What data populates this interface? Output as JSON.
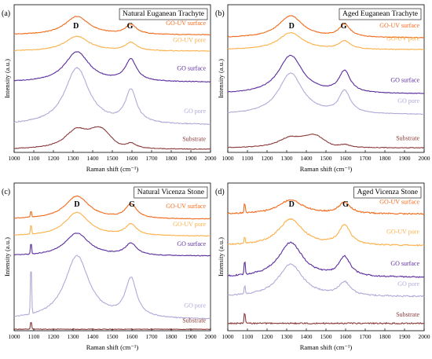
{
  "chart_data": [
    {
      "panel_label": "(a)",
      "title": "Natural Euganean Trachyte",
      "type": "line",
      "xlabel": "Raman shift (cm⁻¹)",
      "ylabel": "Intensity (a.u.)",
      "xlim": [
        1000,
        2000
      ],
      "ylim": [
        0,
        10
      ],
      "xticks": [
        1000,
        1100,
        1200,
        1300,
        1400,
        1500,
        1600,
        1700,
        1800,
        1900,
        2000
      ],
      "annotations": [
        {
          "text": "D",
          "x": 1315
        },
        {
          "text": "G",
          "x": 1590
        }
      ],
      "grid": false,
      "series": [
        {
          "name": "GO-UV surface",
          "color": "#f26a1b",
          "baseline": 7.95,
          "d_height": 1.25,
          "g_height": 0.65
        },
        {
          "name": "GO-UV pore",
          "color": "#fbb04a",
          "baseline": 6.85,
          "d_height": 1.0,
          "g_height": 0.55
        },
        {
          "name": "GO surface",
          "color": "#5b2c9e",
          "baseline": 4.75,
          "d_height": 2.05,
          "g_height": 1.45
        },
        {
          "name": "GO pore",
          "color": "#b3a9d8",
          "baseline": 1.85,
          "d_height": 3.85,
          "g_height": 2.2
        },
        {
          "name": "Substrate",
          "color": "#8b3a3a",
          "baseline": 0.2,
          "d_height": 1.4,
          "g_height": 0.35,
          "extra": [
            {
              "x": 1440,
              "h": 1.1
            }
          ]
        }
      ]
    },
    {
      "panel_label": "(b)",
      "title": "Aged Euganean Trachyte",
      "type": "line",
      "xlabel": "Raman shift (cm⁻¹)",
      "ylabel": "Intensity (a.u.)",
      "xlim": [
        1000,
        2000
      ],
      "ylim": [
        0,
        10
      ],
      "xticks": [
        1000,
        1100,
        1200,
        1300,
        1400,
        1500,
        1600,
        1700,
        1800,
        1900,
        2000
      ],
      "annotations": [
        {
          "text": "D",
          "x": 1325
        },
        {
          "text": "G",
          "x": 1590
        }
      ],
      "grid": false,
      "series": [
        {
          "name": "GO-UV surface",
          "color": "#f26a1b",
          "baseline": 7.75,
          "d_height": 1.5,
          "g_height": 0.85
        },
        {
          "name": "GO-UV pore",
          "color": "#fbb04a",
          "baseline": 6.95,
          "d_height": 1.15,
          "g_height": 0.55
        },
        {
          "name": "GO surface",
          "color": "#5b2c9e",
          "baseline": 3.95,
          "d_height": 2.6,
          "g_height": 1.45
        },
        {
          "name": "GO pore",
          "color": "#b3a9d8",
          "baseline": 2.55,
          "d_height": 2.8,
          "g_height": 1.5
        },
        {
          "name": "Substrate",
          "color": "#8b3a3a",
          "baseline": 0.3,
          "d_height": 0.75,
          "g_height": 0.2,
          "extra": [
            {
              "x": 1440,
              "h": 0.7
            }
          ]
        }
      ]
    },
    {
      "panel_label": "(c)",
      "title": "Natural Vicenza Stone",
      "type": "line",
      "xlabel": "Raman shift (cm⁻¹)",
      "ylabel": "Intensity (a.u.)",
      "xlim": [
        1000,
        2000
      ],
      "ylim": [
        0,
        10
      ],
      "xticks": [
        1000,
        1100,
        1200,
        1300,
        1400,
        1500,
        1600,
        1700,
        1800,
        1900,
        2000
      ],
      "annotations": [
        {
          "text": "D",
          "x": 1320
        },
        {
          "text": "G",
          "x": 1600
        }
      ],
      "grid": false,
      "series": [
        {
          "name": "GO-UV surface",
          "color": "#f26a1b",
          "baseline": 7.55,
          "d_height": 1.55,
          "g_height": 0.95,
          "spike": {
            "x": 1086,
            "h": 0.45
          }
        },
        {
          "name": "GO-UV pore",
          "color": "#fbb04a",
          "baseline": 6.4,
          "d_height": 1.6,
          "g_height": 0.75,
          "spike": {
            "x": 1086,
            "h": 0.7
          }
        },
        {
          "name": "GO surface",
          "color": "#5b2c9e",
          "baseline": 5.05,
          "d_height": 1.55,
          "g_height": 0.8,
          "spike": {
            "x": 1086,
            "h": 0.8
          }
        },
        {
          "name": "GO pore",
          "color": "#b3a9d8",
          "baseline": 0.75,
          "d_height": 4.3,
          "g_height": 2.6,
          "spike": {
            "x": 1086,
            "h": 3.6
          }
        },
        {
          "name": "Substrate",
          "color": "#8b3a3a",
          "baseline": 0.1,
          "d_height": 0.0,
          "g_height": 0.0,
          "spike": {
            "x": 1086,
            "h": 0.55
          }
        }
      ]
    },
    {
      "panel_label": "(d)",
      "title": "Aged Vicenza Stone",
      "type": "line",
      "xlabel": "Raman shift (cm⁻¹)",
      "ylabel": "Intensity (a.u.)",
      "xlim": [
        1000,
        2000
      ],
      "ylim": [
        0,
        10
      ],
      "xticks": [
        1000,
        1100,
        1200,
        1300,
        1400,
        1500,
        1600,
        1700,
        1800,
        1900,
        2000
      ],
      "annotations": [
        {
          "text": "D",
          "x": 1325
        },
        {
          "text": "G",
          "x": 1600
        }
      ],
      "grid": false,
      "series": [
        {
          "name": "GO-UV surface",
          "color": "#f26a1b",
          "baseline": 7.9,
          "d_height": 0.95,
          "g_height": 0.75,
          "spike": {
            "x": 1086,
            "h": 0.75
          }
        },
        {
          "name": "GO-UV pore",
          "color": "#fbb04a",
          "baseline": 5.75,
          "d_height": 1.8,
          "g_height": 1.35,
          "spike": {
            "x": 1086,
            "h": 0.5
          }
        },
        {
          "name": "GO surface",
          "color": "#5b2c9e",
          "baseline": 3.6,
          "d_height": 2.35,
          "g_height": 1.3,
          "spike": {
            "x": 1086,
            "h": 1.0
          }
        },
        {
          "name": "GO pore",
          "color": "#b3a9d8",
          "baseline": 2.3,
          "d_height": 2.2,
          "g_height": 0.9,
          "spike": {
            "x": 1086,
            "h": 0.6
          }
        },
        {
          "name": "Substrate",
          "color": "#8b3a3a",
          "baseline": 0.5,
          "d_height": 0.0,
          "g_height": 0.0,
          "spike": {
            "x": 1086,
            "h": 0.8
          }
        }
      ]
    }
  ]
}
